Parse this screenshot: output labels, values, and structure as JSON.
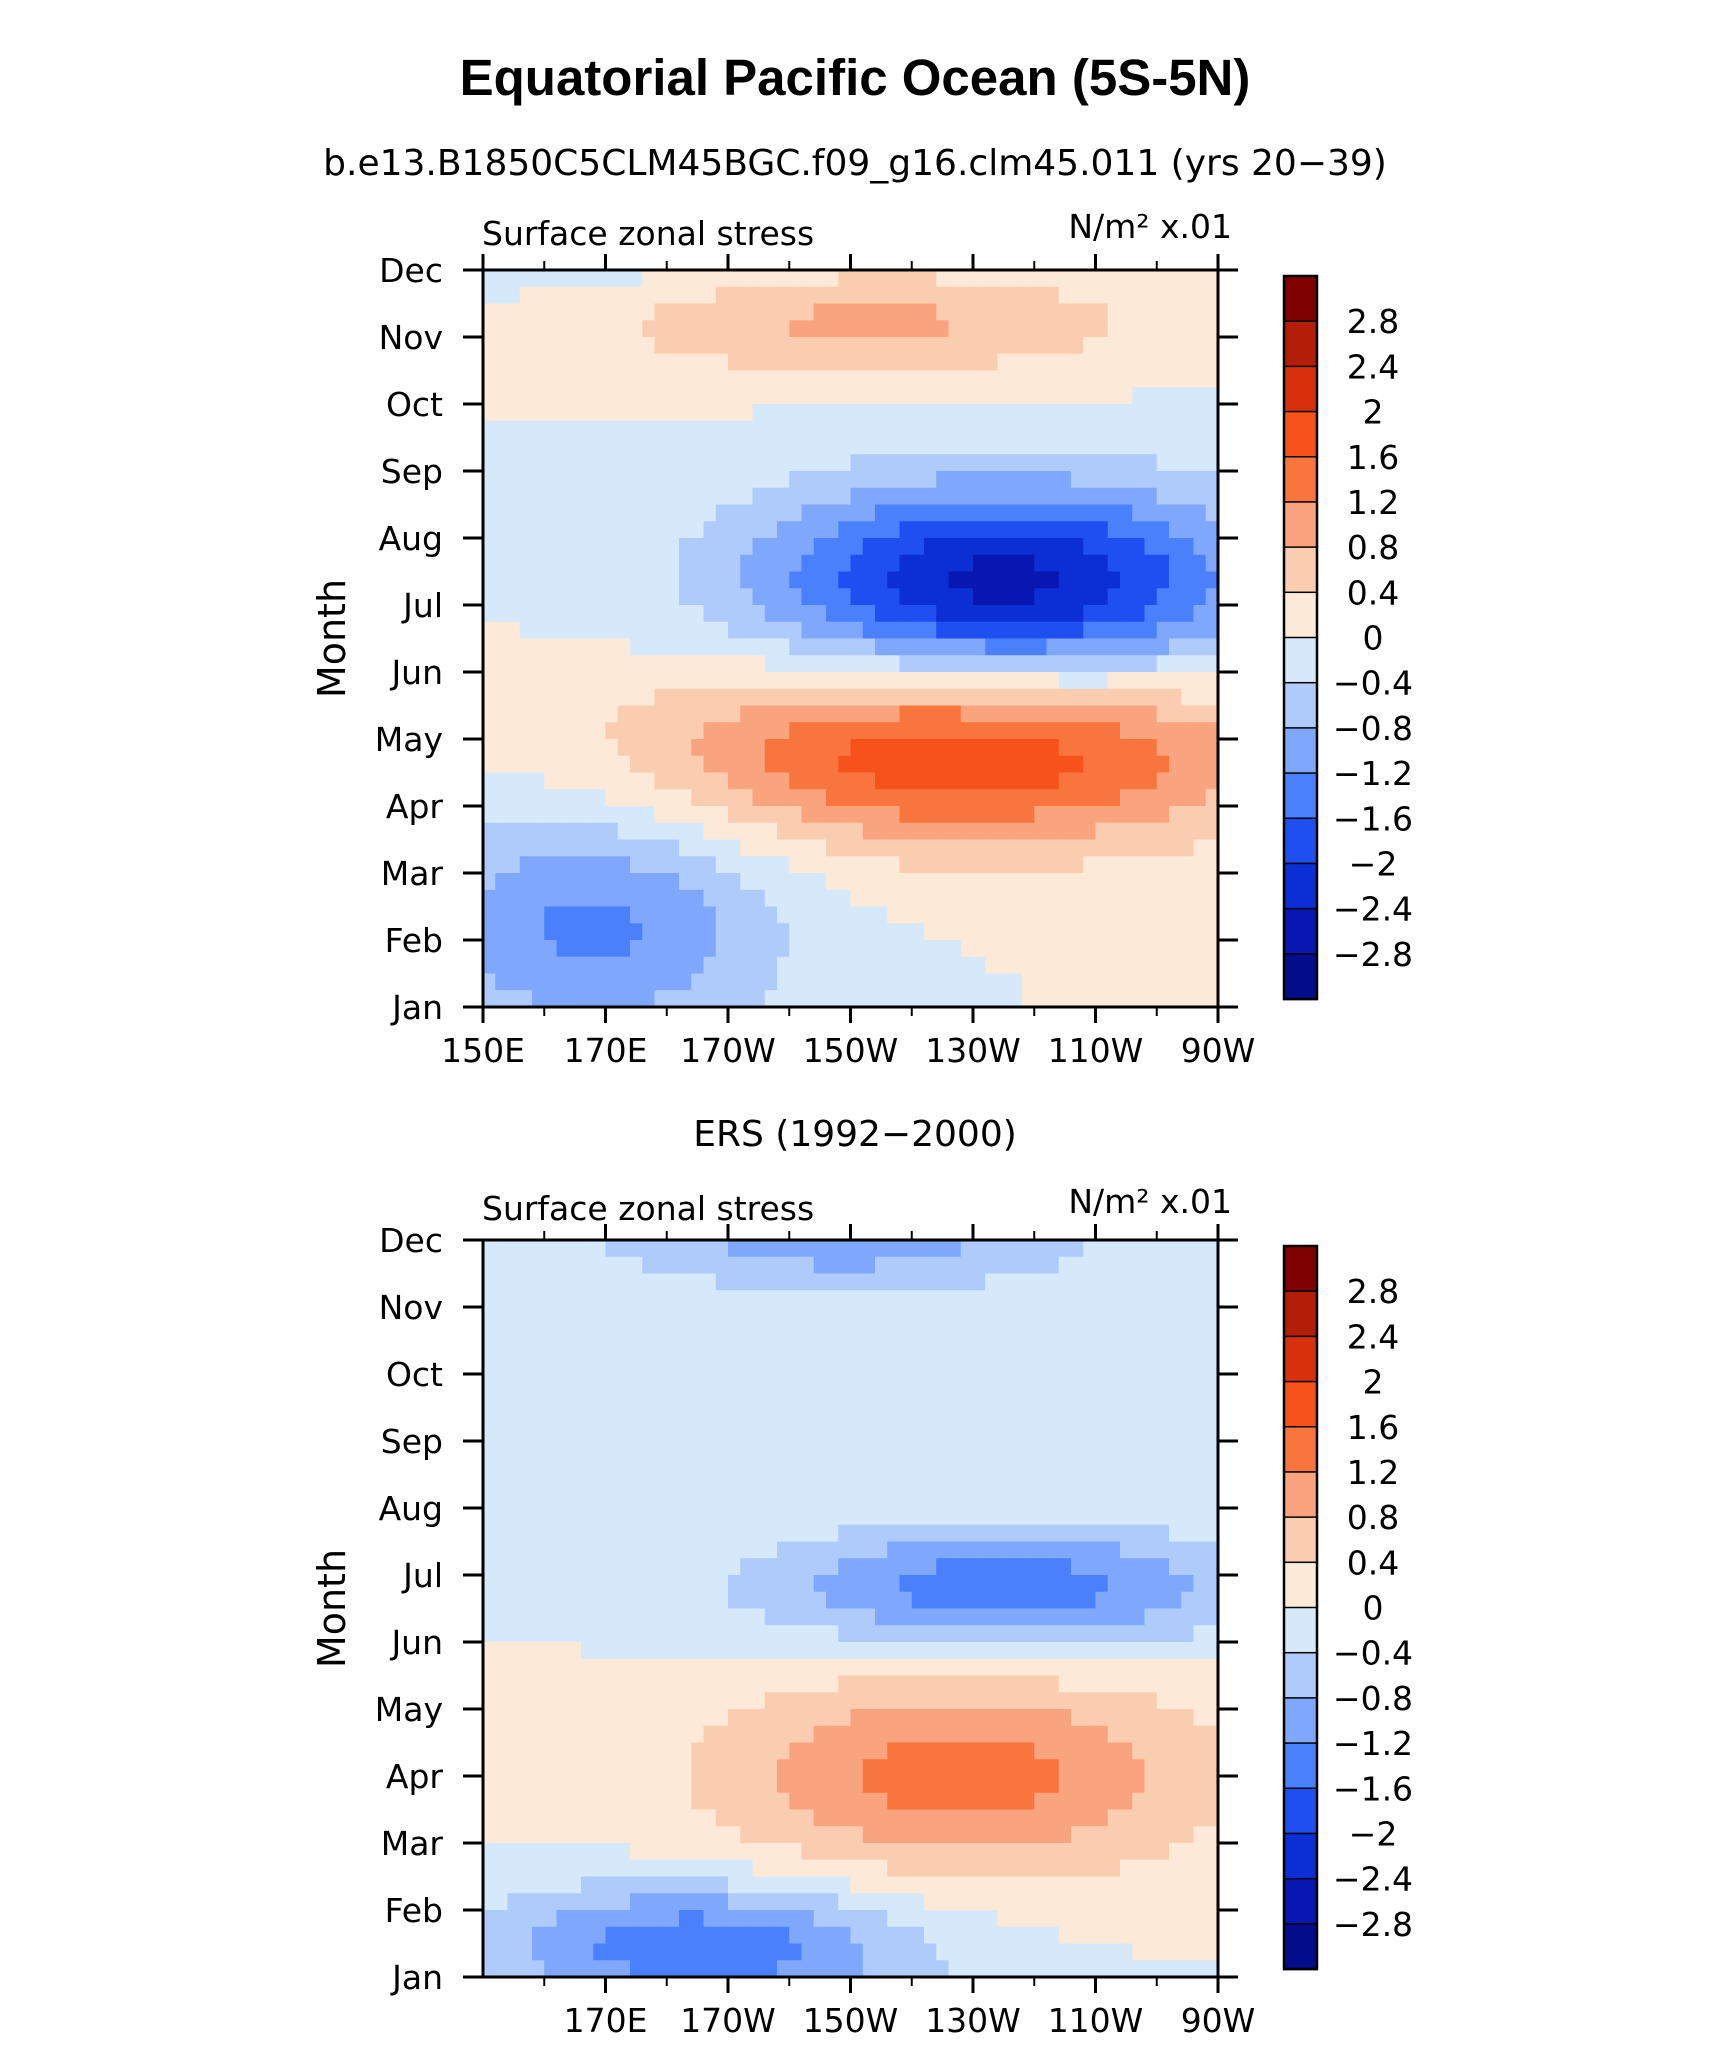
{
  "figure": {
    "title": "Equatorial Pacific Ocean (5S-5N)"
  },
  "colorbar": {
    "tick_labels": [
      "2.8",
      "2.4",
      "2",
      "1.6",
      "1.2",
      "0.8",
      "0.4",
      "0",
      "−0.4",
      "−0.8",
      "−1.2",
      "−1.6",
      "−2",
      "−2.4",
      "−2.8"
    ],
    "levels": [
      2.8,
      2.4,
      2.0,
      1.6,
      1.2,
      0.8,
      0.4,
      0,
      -0.4,
      -0.8,
      -1.2,
      -1.6,
      -2.0,
      -2.4,
      -2.8
    ],
    "colors_top_to_bottom": [
      "#7f0000",
      "#b21e08",
      "#d7300b",
      "#f7521c",
      "#f8763e",
      "#f9a37f",
      "#fbcdb0",
      "#fde9d7",
      "#d5e9fb",
      "#aecbfb",
      "#7fa8fc",
      "#4a80fc",
      "#1f4ff0",
      "#0b2fd4",
      "#0816b2",
      "#030c8a"
    ]
  },
  "chart_data": [
    {
      "type": "heatmap",
      "title": "b.e13.B1850C5CLM45BGC.f09_g16.clm45.011 (yrs 20−39)",
      "left_string": "Surface zonal stress",
      "right_string": "N/m² x.01",
      "ylabel": "Month",
      "x_tick_labels": [
        "150E",
        "170E",
        "170W",
        "150W",
        "130W",
        "110W",
        "90W"
      ],
      "x_ticks_lon": [
        150,
        170,
        190,
        210,
        230,
        250,
        270
      ],
      "xlim": [
        150,
        270
      ],
      "y_tick_labels": [
        "Jan",
        "Feb",
        "Mar",
        "Apr",
        "May",
        "Jun",
        "Jul",
        "Aug",
        "Sep",
        "Oct",
        "Nov",
        "Dec"
      ],
      "grid": false,
      "features": [
        {
          "lon": 235,
          "month": 7.3,
          "value": -2.6,
          "sx": 40,
          "sy": 1.5
        },
        {
          "lon": 212,
          "month": 11.2,
          "value": 0.9,
          "sx": 45,
          "sy": 0.8
        },
        {
          "lon": 228,
          "month": 4.8,
          "value": 2.0,
          "sx": 50,
          "sy": 1.4
        },
        {
          "lon": 168,
          "month": 2.2,
          "value": -1.3,
          "sx": 30,
          "sy": 1.8
        }
      ]
    },
    {
      "type": "heatmap",
      "title": "ERS (1992−2000)",
      "left_string": "Surface zonal stress",
      "right_string": "N/m² x.01",
      "ylabel": "Month",
      "x_tick_labels": [
        "170E",
        "170W",
        "150W",
        "130W",
        "110W",
        "90W"
      ],
      "x_ticks_lon": [
        170,
        190,
        210,
        230,
        250,
        270
      ],
      "xlim": [
        150,
        270
      ],
      "y_tick_labels": [
        "Jan",
        "Feb",
        "Mar",
        "Apr",
        "May",
        "Jun",
        "Jul",
        "Aug",
        "Sep",
        "Oct",
        "Nov",
        "Dec"
      ],
      "grid": false,
      "features": [
        {
          "lon": 235,
          "month": 6.8,
          "value": -1.5,
          "sx": 40,
          "sy": 0.9
        },
        {
          "lon": 228,
          "month": 4.0,
          "value": 1.4,
          "sx": 40,
          "sy": 1.5
        },
        {
          "lon": 185,
          "month": 1.5,
          "value": -1.5,
          "sx": 35,
          "sy": 0.9
        },
        {
          "lon": 210,
          "month": 12.0,
          "value": -1.0,
          "sx": 40,
          "sy": 0.8
        }
      ]
    }
  ]
}
